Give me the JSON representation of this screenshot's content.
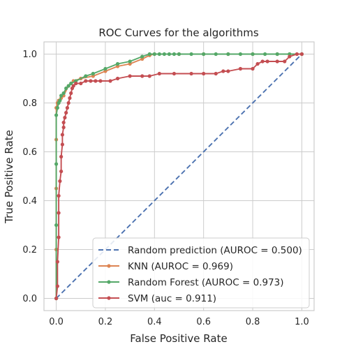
{
  "chart_data": {
    "type": "line",
    "title": "ROC Curves for the algorithms",
    "xlabel": "False Positive Rate",
    "ylabel": "True Positive Rate",
    "xlim": [
      -0.05,
      1.05
    ],
    "ylim": [
      -0.05,
      1.05
    ],
    "xticks": [
      "0.0",
      "0.2",
      "0.4",
      "0.6",
      "0.8",
      "1.0"
    ],
    "yticks": [
      "0.0",
      "0.2",
      "0.4",
      "0.6",
      "0.8",
      "1.0"
    ],
    "grid": true,
    "legend_position": "lower-right",
    "series": [
      {
        "name": "Random prediction (AUROC = 0.500)",
        "color": "#4c72b0",
        "style": "dashed",
        "markers": false,
        "x": [
          0,
          1
        ],
        "y": [
          0,
          1
        ]
      },
      {
        "name": "KNN (AUROC = 0.969)",
        "color": "#dd8452",
        "style": "solid",
        "markers": true,
        "x": [
          0,
          0,
          0,
          0,
          0,
          0.005,
          0.01,
          0.02,
          0.03,
          0.05,
          0.07,
          0.1,
          0.15,
          0.2,
          0.25,
          0.3,
          0.35,
          0.38,
          0.4,
          0.5,
          0.6,
          0.7,
          0.8,
          0.9,
          0.95,
          1.0
        ],
        "y": [
          0,
          0.2,
          0.45,
          0.65,
          0.78,
          0.8,
          0.81,
          0.82,
          0.83,
          0.87,
          0.89,
          0.9,
          0.91,
          0.93,
          0.95,
          0.96,
          0.98,
          0.995,
          1.0,
          1.0,
          1.0,
          1.0,
          1.0,
          1.0,
          1.0,
          1.0
        ]
      },
      {
        "name": "Random Forest (AUROC = 0.973)",
        "color": "#55a868",
        "style": "solid",
        "markers": true,
        "x": [
          0,
          0,
          0,
          0,
          0.005,
          0.01,
          0.015,
          0.02,
          0.03,
          0.04,
          0.05,
          0.06,
          0.08,
          0.12,
          0.15,
          0.2,
          0.25,
          0.3,
          0.35,
          0.38,
          0.4,
          0.42,
          0.44,
          0.46,
          0.48,
          0.5,
          0.55,
          0.6,
          0.65,
          0.7,
          0.75,
          0.8,
          0.85,
          0.9,
          0.95,
          1.0
        ],
        "y": [
          0,
          0.3,
          0.55,
          0.75,
          0.78,
          0.8,
          0.81,
          0.83,
          0.84,
          0.86,
          0.87,
          0.88,
          0.89,
          0.91,
          0.92,
          0.94,
          0.96,
          0.97,
          0.99,
          1.0,
          1.0,
          1.0,
          1.0,
          1.0,
          1.0,
          1.0,
          1.0,
          1.0,
          1.0,
          1.0,
          1.0,
          1.0,
          1.0,
          1.0,
          1.0,
          1.0
        ]
      },
      {
        "name": "SVM (auc = 0.911)",
        "color": "#c44e52",
        "style": "solid",
        "markers": true,
        "x": [
          0,
          0.005,
          0.005,
          0.01,
          0.01,
          0.01,
          0.015,
          0.02,
          0.02,
          0.025,
          0.025,
          0.03,
          0.03,
          0.035,
          0.04,
          0.045,
          0.05,
          0.055,
          0.06,
          0.065,
          0.07,
          0.08,
          0.1,
          0.12,
          0.14,
          0.16,
          0.18,
          0.22,
          0.25,
          0.3,
          0.35,
          0.38,
          0.42,
          0.48,
          0.55,
          0.6,
          0.65,
          0.68,
          0.7,
          0.75,
          0.8,
          0.82,
          0.84,
          0.86,
          0.9,
          0.93,
          0.95,
          0.98,
          1.0
        ],
        "y": [
          0,
          0.05,
          0.15,
          0.25,
          0.35,
          0.42,
          0.48,
          0.52,
          0.58,
          0.63,
          0.67,
          0.7,
          0.72,
          0.74,
          0.76,
          0.78,
          0.8,
          0.82,
          0.84,
          0.86,
          0.87,
          0.88,
          0.88,
          0.89,
          0.89,
          0.89,
          0.89,
          0.89,
          0.9,
          0.91,
          0.91,
          0.91,
          0.92,
          0.92,
          0.92,
          0.92,
          0.92,
          0.93,
          0.93,
          0.94,
          0.94,
          0.96,
          0.97,
          0.97,
          0.97,
          0.97,
          0.99,
          1.0,
          1.0
        ]
      }
    ]
  }
}
